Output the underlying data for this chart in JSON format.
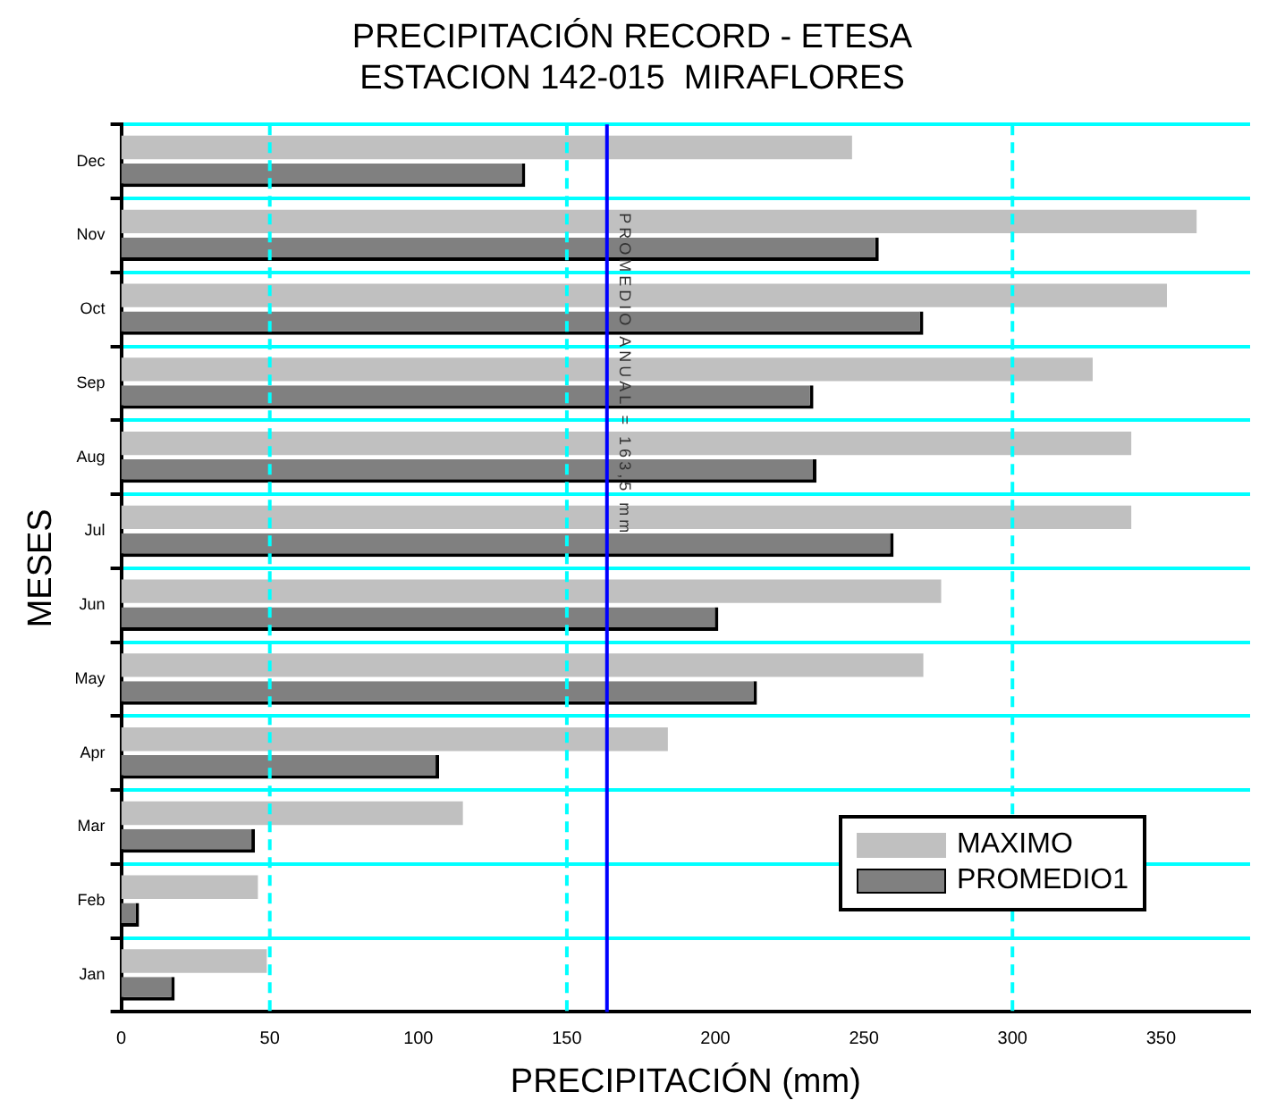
{
  "chart_data": {
    "type": "bar",
    "orientation": "horizontal",
    "title": "PRECIPITACIÓN RECORD - ETESA",
    "subtitle": "ESTACION 142-015  MIRAFLORES",
    "xlabel": "PRECIPITACIÓN (mm)",
    "ylabel": "MESES",
    "categories": [
      "Dec",
      "Nov",
      "Oct",
      "Sep",
      "Aug",
      "Jul",
      "Jun",
      "May",
      "Apr",
      "Mar",
      "Feb",
      "Jan"
    ],
    "series": [
      {
        "name": "MAXIMO",
        "color": "#c0c0c0",
        "values": [
          246,
          362,
          352,
          327,
          340,
          340,
          276,
          270,
          184,
          115,
          46,
          49
        ]
      },
      {
        "name": "PROMEDIO1",
        "color": "#808080",
        "values": [
          136,
          255,
          270,
          233,
          234,
          260,
          201,
          214,
          107,
          45,
          6,
          18
        ]
      }
    ],
    "xlim": [
      0,
      380
    ],
    "xticks": [
      0,
      50,
      100,
      150,
      200,
      250,
      300,
      350
    ],
    "ref_lines": [
      {
        "axis": "x",
        "value": 50,
        "color": "#00ffff",
        "line_style": "dashed"
      },
      {
        "axis": "x",
        "value": 150,
        "color": "#00ffff",
        "line_style": "dashed"
      },
      {
        "axis": "x",
        "value": 300,
        "color": "#00ffff",
        "line_style": "dashed"
      },
      {
        "axis": "x",
        "value": 163.5,
        "label": "PROMEDIO ANUAL = 163,5 mm",
        "color": "#0000ff",
        "line_style": "solid"
      }
    ],
    "grid": "y",
    "legend": "bottom right"
  }
}
